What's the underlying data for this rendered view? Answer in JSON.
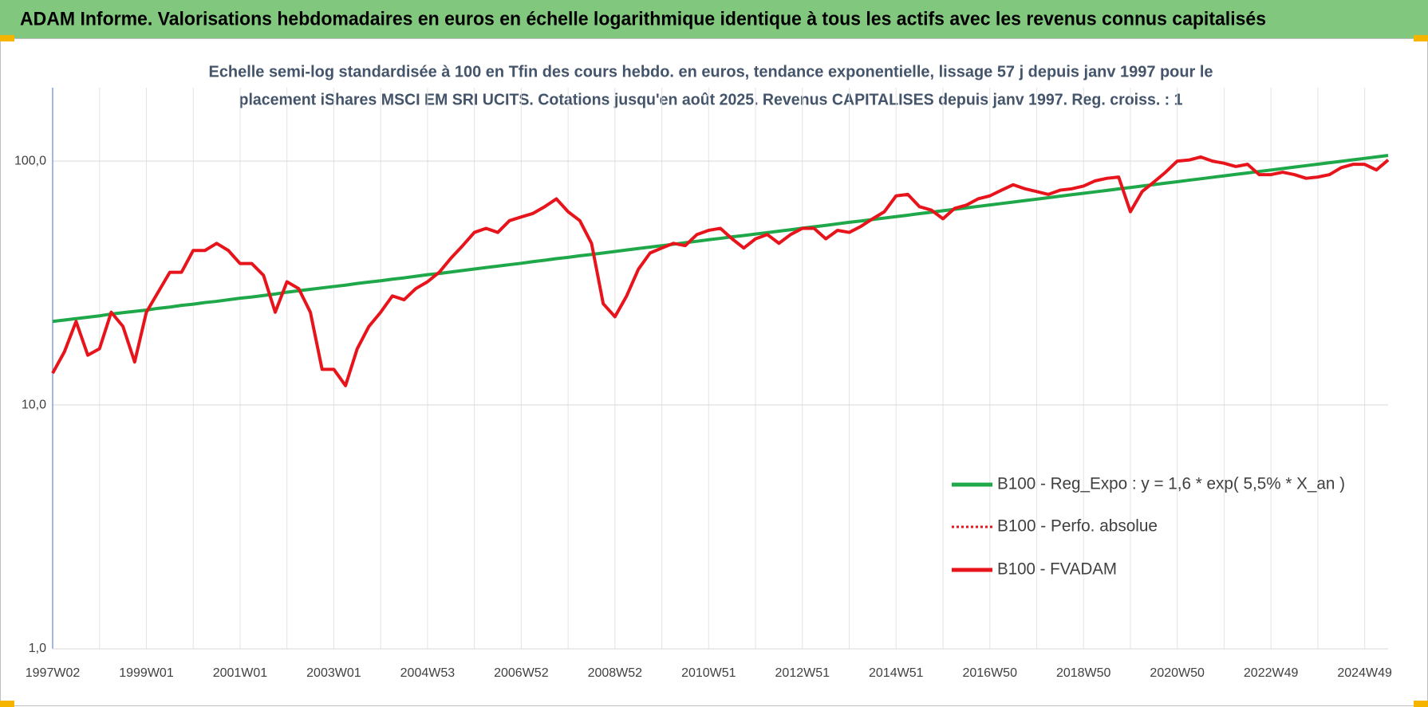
{
  "header": "ADAM Informe. Valorisations hebdomadaires en euros en échelle logarithmique identique à tous les actifs avec les revenus connus capitalisés",
  "chart_data": {
    "type": "line",
    "title_lines": [
      "Echelle semi-log standardisée à 100 en Tfin des cours hebdo. en euros, tendance exponentielle, lissage 57 j depuis janv 1997 pour le",
      "placement iShares MSCI EM SRI UCITS. Cotations jusqu'en août 2025. Revenus CAPITALISES depuis janv 1997. Reg. croiss. : 1"
    ],
    "log_scale": true,
    "grid": true,
    "ylim": [
      1,
      200
    ],
    "yticks": [
      {
        "value": 1,
        "label": "1,0"
      },
      {
        "value": 10,
        "label": "10,0"
      },
      {
        "value": 100,
        "label": "100,0"
      }
    ],
    "categories": [
      "1997W02",
      null,
      null,
      null,
      null,
      null,
      null,
      null,
      "1999W01",
      null,
      null,
      null,
      null,
      null,
      null,
      null,
      "2001W01",
      null,
      null,
      null,
      null,
      null,
      null,
      null,
      "2003W01",
      null,
      null,
      null,
      null,
      null,
      null,
      null,
      "2004W53",
      null,
      null,
      null,
      null,
      null,
      null,
      null,
      "2006W52",
      null,
      null,
      null,
      null,
      null,
      null,
      null,
      "2008W52",
      null,
      null,
      null,
      null,
      null,
      null,
      null,
      "2010W51",
      null,
      null,
      null,
      null,
      null,
      null,
      null,
      "2012W51",
      null,
      null,
      null,
      null,
      null,
      null,
      null,
      "2014W51",
      null,
      null,
      null,
      null,
      null,
      null,
      null,
      "2016W50",
      null,
      null,
      null,
      null,
      null,
      null,
      null,
      "2018W50",
      null,
      null,
      null,
      null,
      null,
      null,
      null,
      "2020W50",
      null,
      null,
      null,
      null,
      null,
      null,
      null,
      "2022W49",
      null,
      null,
      null,
      null,
      null,
      null,
      null,
      "2024W49",
      null,
      null
    ],
    "series": [
      {
        "name": "B100 - Reg_Expo : y = 1,6 * exp( 5,5% *  X_an )",
        "color": "#1fa84a",
        "style": "solid",
        "values": [
          22.0,
          22.3,
          22.6,
          22.9,
          23.2,
          23.6,
          23.9,
          24.2,
          24.5,
          24.9,
          25.2,
          25.6,
          25.9,
          26.3,
          26.6,
          27.0,
          27.4,
          27.7,
          28.1,
          28.5,
          29.0,
          29.4,
          29.8,
          30.2,
          30.6,
          31.0,
          31.5,
          31.9,
          32.3,
          32.8,
          33.2,
          33.7,
          34.2,
          34.6,
          35.1,
          35.6,
          36.1,
          36.6,
          37.1,
          37.6,
          38.1,
          38.7,
          39.2,
          39.8,
          40.3,
          40.9,
          41.4,
          42.0,
          42.6,
          43.2,
          43.8,
          44.4,
          45.0,
          45.6,
          46.3,
          46.9,
          47.6,
          48.2,
          48.9,
          49.5,
          50.2,
          50.9,
          51.6,
          52.3,
          53.1,
          53.8,
          54.5,
          55.3,
          56.1,
          56.8,
          57.6,
          58.4,
          59.2,
          60.0,
          60.9,
          61.7,
          62.6,
          63.4,
          64.3,
          65.2,
          66.1,
          67.0,
          67.9,
          68.9,
          69.8,
          70.8,
          71.8,
          72.8,
          73.8,
          74.8,
          75.8,
          76.9,
          77.9,
          79.0,
          80.1,
          81.2,
          82.3,
          83.5,
          84.6,
          85.8,
          87.0,
          88.2,
          89.4,
          90.7,
          91.9,
          93.2,
          94.5,
          95.8,
          97.1,
          98.5,
          99.8,
          101.2,
          102.6,
          104.0,
          105.5
        ]
      },
      {
        "name": "B100 - Perfo. absolue",
        "color": "#e8141b",
        "style": "dotted",
        "values": [
          13.5,
          16.5,
          22,
          16,
          17,
          24,
          21,
          15,
          24,
          29,
          35,
          35,
          43,
          43,
          46,
          43,
          38,
          38,
          34,
          24,
          32,
          30,
          24,
          14,
          14,
          12,
          17,
          21,
          24,
          28,
          27,
          30,
          32,
          35,
          40,
          45,
          51,
          53,
          51,
          57,
          59,
          61,
          65,
          70,
          62,
          57,
          46,
          26,
          23,
          28,
          36,
          42,
          44,
          46,
          45,
          50,
          52,
          53,
          48,
          44,
          48,
          50,
          46,
          50,
          53,
          53,
          48,
          52,
          51,
          54,
          58,
          62,
          72,
          73,
          65,
          63,
          58,
          64,
          66,
          70,
          72,
          76,
          80,
          77,
          75,
          73,
          76,
          77,
          79,
          83,
          85,
          86,
          62,
          75,
          82,
          90,
          100,
          101,
          104,
          100,
          98,
          95,
          97,
          88,
          88,
          90,
          88,
          85,
          86,
          88,
          94,
          97,
          97,
          92,
          101
        ]
      },
      {
        "name": "B100 - FVADAM",
        "color": "#e8141b",
        "style": "solid",
        "values": [
          13.5,
          16.5,
          22,
          16,
          17,
          24,
          21,
          15,
          24,
          29,
          35,
          35,
          43,
          43,
          46,
          43,
          38,
          38,
          34,
          24,
          32,
          30,
          24,
          14,
          14,
          12,
          17,
          21,
          24,
          28,
          27,
          30,
          32,
          35,
          40,
          45,
          51,
          53,
          51,
          57,
          59,
          61,
          65,
          70,
          62,
          57,
          46,
          26,
          23,
          28,
          36,
          42,
          44,
          46,
          45,
          50,
          52,
          53,
          48,
          44,
          48,
          50,
          46,
          50,
          53,
          53,
          48,
          52,
          51,
          54,
          58,
          62,
          72,
          73,
          65,
          63,
          58,
          64,
          66,
          70,
          72,
          76,
          80,
          77,
          75,
          73,
          76,
          77,
          79,
          83,
          85,
          86,
          62,
          75,
          82,
          90,
          100,
          101,
          104,
          100,
          98,
          95,
          97,
          88,
          88,
          90,
          88,
          85,
          86,
          88,
          94,
          97,
          97,
          92,
          101
        ]
      }
    ]
  }
}
